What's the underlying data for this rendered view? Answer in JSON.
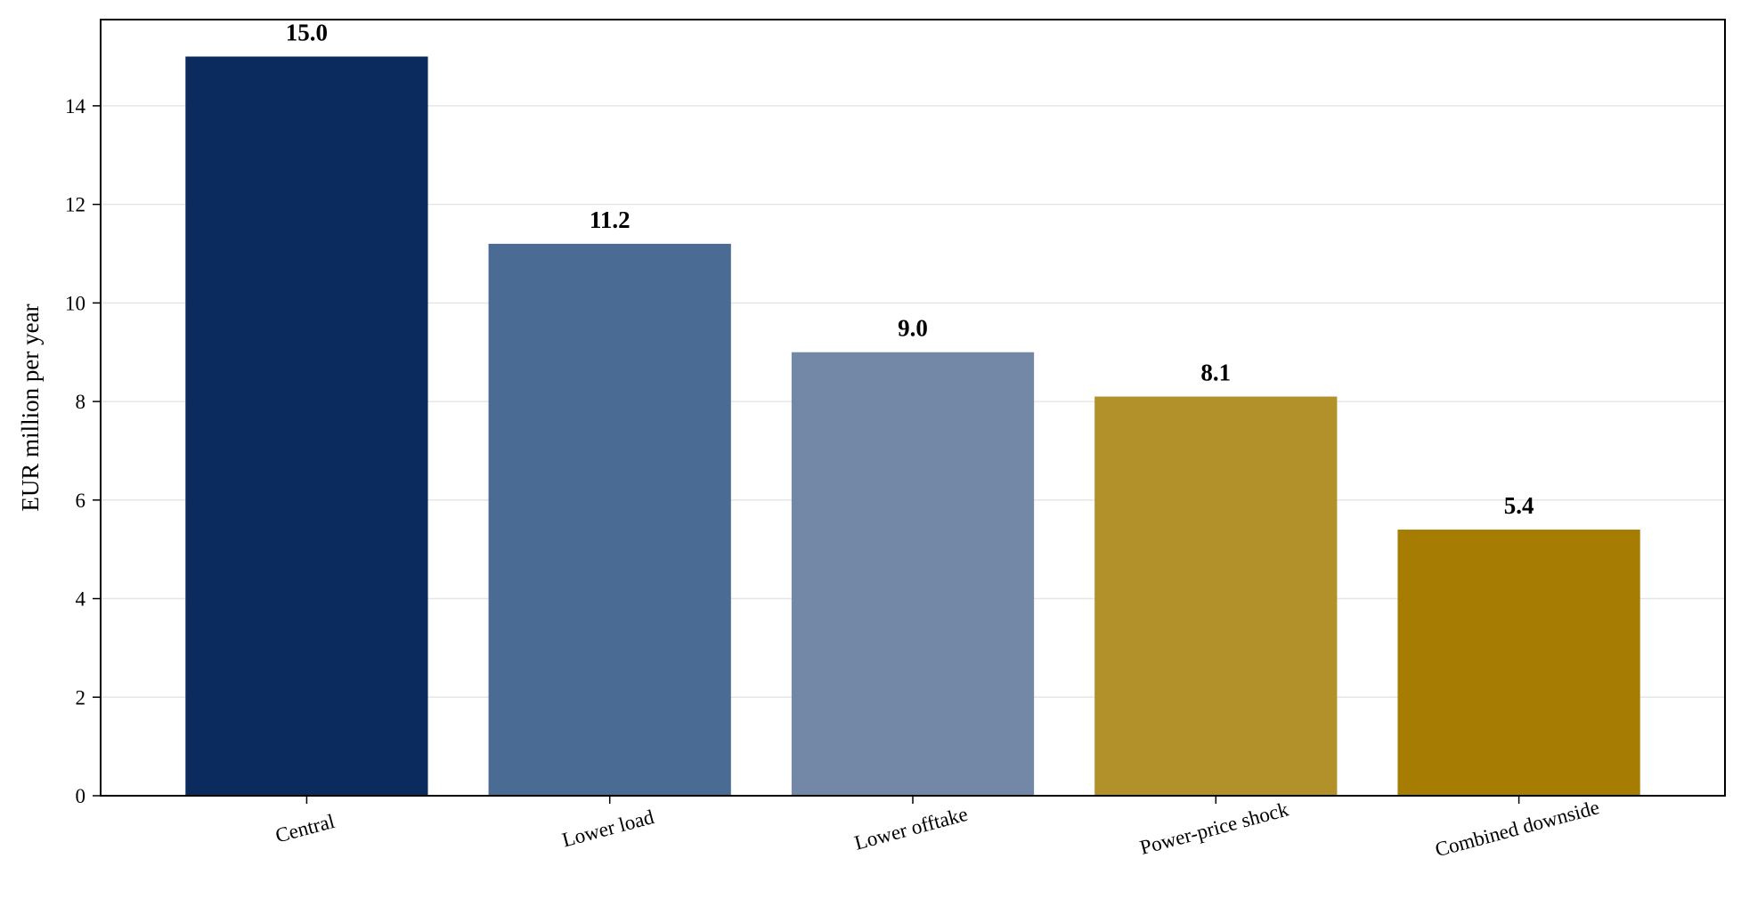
{
  "chart_data": {
    "type": "bar",
    "title": "",
    "xlabel": "",
    "ylabel": "EUR million per year",
    "categories": [
      "Central",
      "Lower load",
      "Lower offtake",
      "Power-price shock",
      "Combined downside"
    ],
    "values": [
      15.0,
      11.2,
      9.0,
      8.1,
      5.4
    ],
    "data_labels": [
      "15.0",
      "11.2",
      "9.0",
      "8.1",
      "5.4"
    ],
    "colors": [
      "#0b2a5e",
      "#4a6b94",
      "#7388a6",
      "#b3912a",
      "#a67c02"
    ],
    "ylim": [
      0,
      15.75
    ],
    "yticks": [
      0,
      2,
      4,
      6,
      8,
      10,
      12,
      14
    ],
    "grid": "horizontal",
    "legend": "none"
  }
}
